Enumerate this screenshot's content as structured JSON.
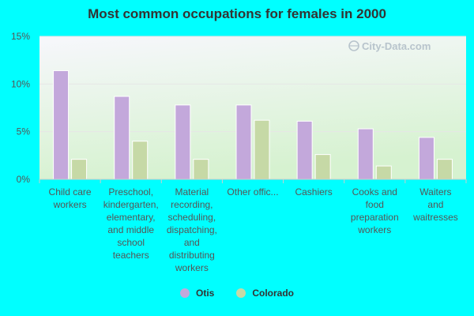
{
  "chart_data": {
    "type": "bar",
    "title": "Most common occupations for females in 2000",
    "xlabel": "",
    "ylabel": "",
    "ylim": [
      0,
      15
    ],
    "yticks": [
      "0%",
      "5%",
      "10%",
      "15%"
    ],
    "ytick_values": [
      0,
      5,
      10,
      15
    ],
    "grid": true,
    "legend_position": "bottom",
    "categories": [
      [
        "Child care",
        "workers"
      ],
      [
        "Preschool,",
        "kindergarten,",
        "elementary,",
        "and middle",
        "school",
        "teachers"
      ],
      [
        "Material",
        "recording,",
        "scheduling,",
        "dispatching,",
        "and",
        "distributing",
        "workers"
      ],
      [
        "Other offic..."
      ],
      [
        "Cashiers"
      ],
      [
        "Cooks and",
        "food",
        "preparation",
        "workers"
      ],
      [
        "Waiters",
        "and",
        "waitresses"
      ]
    ],
    "series": [
      {
        "name": "Otis",
        "color": "#c3a8db",
        "values": [
          11.4,
          8.7,
          7.8,
          7.8,
          6.1,
          5.3,
          4.4
        ]
      },
      {
        "name": "Colorado",
        "color": "#c6d9a6",
        "values": [
          2.1,
          4.0,
          2.1,
          6.2,
          2.6,
          1.4,
          2.1
        ]
      }
    ],
    "colors": {
      "background": "#00ffff",
      "plot_top": "#f7f7fc",
      "plot_bottom": "#d6f2d0",
      "axis": "#cccccc",
      "text": "#555555",
      "watermark": "#b8c4cc"
    }
  },
  "watermark": {
    "text": "City-Data.com"
  }
}
